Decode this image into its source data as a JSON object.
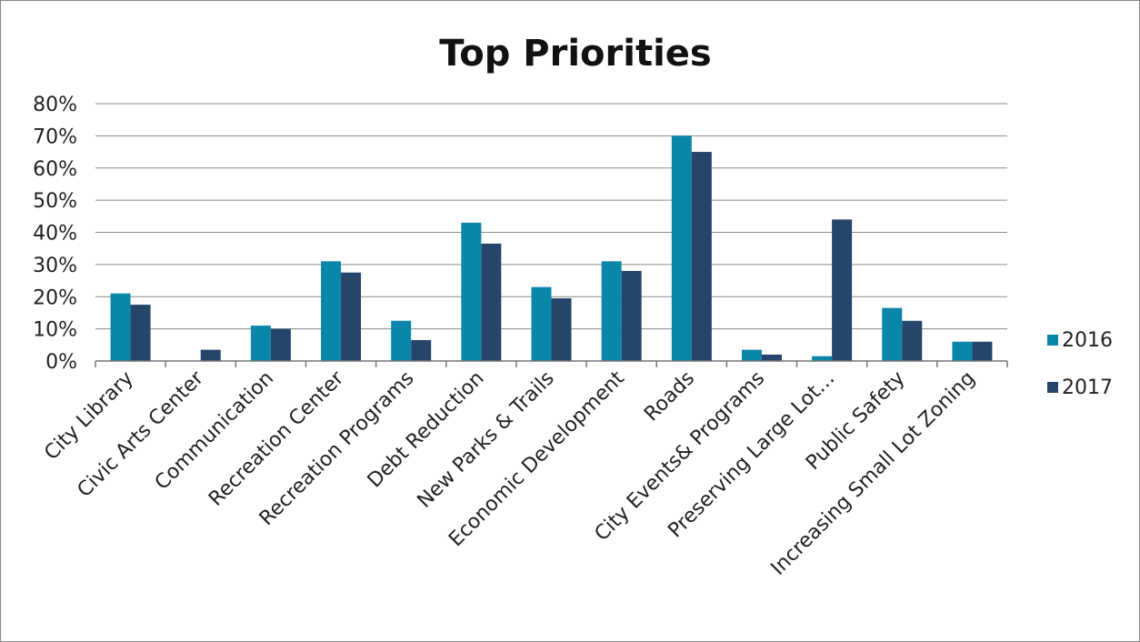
{
  "chart_data": {
    "type": "bar",
    "title": "Top Priorities",
    "xlabel": "",
    "ylabel": "",
    "ylim": [
      0,
      0.8
    ],
    "y_ticks": [
      "0%",
      "10%",
      "20%",
      "30%",
      "40%",
      "50%",
      "60%",
      "70%",
      "80%"
    ],
    "y_tick_values": [
      0,
      0.1,
      0.2,
      0.3,
      0.4,
      0.5,
      0.6,
      0.7,
      0.8
    ],
    "grid": true,
    "legend_position": "right",
    "categories": [
      "City Library",
      "Civic Arts Center",
      "Communication",
      "Recreation Center",
      "Recreation Programs",
      "Debt Reduction",
      "New Parks & Trails",
      "Economic Development",
      "Roads",
      "City Events& Programs",
      "Preserving Large Lot…",
      "Public Safety",
      "Increasing Small Lot Zoning"
    ],
    "series": [
      {
        "name": "2016",
        "color": "#0a86aa",
        "values": [
          0.21,
          0.0,
          0.11,
          0.31,
          0.125,
          0.43,
          0.23,
          0.31,
          0.7,
          0.035,
          0.015,
          0.165,
          0.06
        ]
      },
      {
        "name": "2017",
        "color": "#26456a",
        "values": [
          0.175,
          0.035,
          0.1,
          0.275,
          0.065,
          0.365,
          0.195,
          0.28,
          0.65,
          0.02,
          0.44,
          0.125,
          0.06
        ]
      }
    ]
  }
}
